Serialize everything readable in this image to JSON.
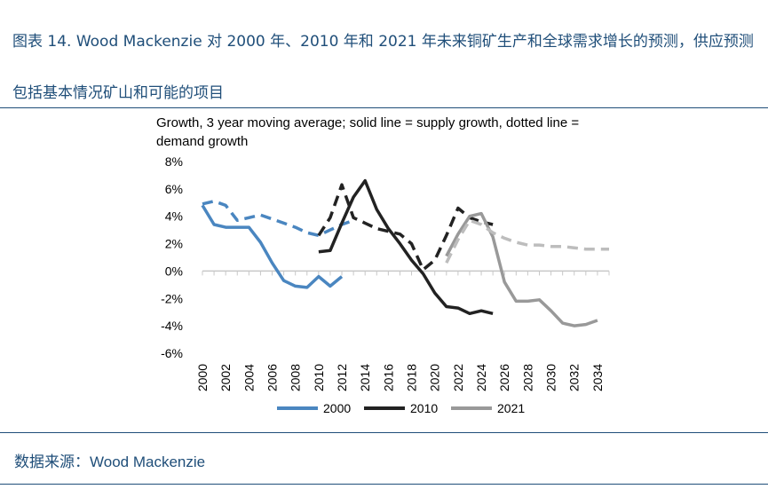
{
  "caption": "图表 14. Wood Mackenzie 对 2000 年、2010 年和 2021 年未来铜矿生产和全球需求增长的预测，供应预测包括基本情况矿山和可能的项目",
  "source": {
    "prefix": "数据来源：",
    "name": "Wood Mackenzie"
  },
  "chart_data": {
    "type": "line",
    "title": "",
    "subtitle": "Growth, 3 year moving average; solid line = supply growth, dotted line = demand growth",
    "subtitle_lines": [
      "Growth, 3 year moving average; solid line = supply growth, dotted line =",
      "demand growth"
    ],
    "xlabel": "",
    "ylabel": "",
    "x_ticks": [
      "2000",
      "2002",
      "2004",
      "2006",
      "2008",
      "2010",
      "2012",
      "2014",
      "2016",
      "2018",
      "2020",
      "2022",
      "2024",
      "2026",
      "2028",
      "2030",
      "2032",
      "2034"
    ],
    "y_ticks": [
      "8%",
      "6%",
      "4%",
      "2%",
      "0%",
      "-2%",
      "-4%",
      "-6%"
    ],
    "xlim": [
      2000,
      2035
    ],
    "ylim": [
      -6,
      8
    ],
    "legend_position": "bottom",
    "series": [
      {
        "name": "2000",
        "kind": "supply",
        "color": "#4a86c0",
        "points": [
          [
            2000,
            4.8
          ],
          [
            2001,
            3.4
          ],
          [
            2002,
            3.2
          ],
          [
            2003,
            3.2
          ],
          [
            2004,
            3.2
          ],
          [
            2005,
            2.1
          ],
          [
            2006,
            0.6
          ],
          [
            2007,
            -0.7
          ],
          [
            2008,
            -1.1
          ],
          [
            2009,
            -1.2
          ],
          [
            2010,
            -0.4
          ],
          [
            2011,
            -1.1
          ],
          [
            2012,
            -0.4
          ]
        ]
      },
      {
        "name": "2000",
        "kind": "demand",
        "color": "#4a86c0",
        "points": [
          [
            2000,
            4.9
          ],
          [
            2001,
            5.1
          ],
          [
            2002,
            4.8
          ],
          [
            2003,
            3.7
          ],
          [
            2004,
            3.9
          ],
          [
            2005,
            4.1
          ],
          [
            2006,
            3.8
          ],
          [
            2007,
            3.5
          ],
          [
            2008,
            3.2
          ],
          [
            2009,
            2.8
          ],
          [
            2010,
            2.6
          ],
          [
            2011,
            3.0
          ],
          [
            2012,
            3.4
          ],
          [
            2013,
            3.7
          ]
        ]
      },
      {
        "name": "2010",
        "kind": "supply",
        "color": "#222222",
        "points": [
          [
            2010,
            1.4
          ],
          [
            2011,
            1.5
          ],
          [
            2012,
            3.5
          ],
          [
            2013,
            5.4
          ],
          [
            2014,
            6.6
          ],
          [
            2015,
            4.5
          ],
          [
            2016,
            3.1
          ],
          [
            2017,
            2.0
          ],
          [
            2018,
            0.8
          ],
          [
            2019,
            -0.2
          ],
          [
            2020,
            -1.6
          ],
          [
            2021,
            -2.6
          ],
          [
            2022,
            -2.7
          ],
          [
            2023,
            -3.1
          ],
          [
            2024,
            -2.9
          ],
          [
            2025,
            -3.1
          ]
        ]
      },
      {
        "name": "2010",
        "kind": "demand",
        "color": "#222222",
        "points": [
          [
            2010,
            2.6
          ],
          [
            2011,
            3.9
          ],
          [
            2012,
            6.3
          ],
          [
            2013,
            3.9
          ],
          [
            2014,
            3.5
          ],
          [
            2015,
            3.1
          ],
          [
            2016,
            2.9
          ],
          [
            2017,
            2.7
          ],
          [
            2018,
            2.0
          ],
          [
            2019,
            0.1
          ],
          [
            2020,
            0.8
          ],
          [
            2021,
            2.6
          ],
          [
            2022,
            4.6
          ],
          [
            2023,
            3.9
          ],
          [
            2024,
            3.6
          ],
          [
            2025,
            3.4
          ]
        ]
      },
      {
        "name": "2021",
        "kind": "supply",
        "color": "#999999",
        "points": [
          [
            2021,
            1.1
          ],
          [
            2022,
            2.7
          ],
          [
            2023,
            4.0
          ],
          [
            2024,
            4.2
          ],
          [
            2025,
            2.5
          ],
          [
            2026,
            -0.8
          ],
          [
            2027,
            -2.2
          ],
          [
            2028,
            -2.2
          ],
          [
            2029,
            -2.1
          ],
          [
            2030,
            -2.9
          ],
          [
            2031,
            -3.8
          ],
          [
            2032,
            -4.0
          ],
          [
            2033,
            -3.9
          ],
          [
            2034,
            -3.6
          ]
        ]
      },
      {
        "name": "2021",
        "kind": "demand",
        "color": "#bdbdbd",
        "points": [
          [
            2021,
            0.6
          ],
          [
            2022,
            2.3
          ],
          [
            2023,
            3.7
          ],
          [
            2024,
            3.4
          ],
          [
            2025,
            2.8
          ],
          [
            2026,
            2.4
          ],
          [
            2027,
            2.1
          ],
          [
            2028,
            1.9
          ],
          [
            2029,
            1.9
          ],
          [
            2030,
            1.8
          ],
          [
            2031,
            1.8
          ],
          [
            2032,
            1.7
          ],
          [
            2033,
            1.6
          ],
          [
            2034,
            1.6
          ],
          [
            2035,
            1.6
          ]
        ]
      }
    ],
    "legend": [
      {
        "name": "2000",
        "color": "#4a86c0"
      },
      {
        "name": "2010",
        "color": "#222222"
      },
      {
        "name": "2021",
        "color": "#999999"
      }
    ]
  }
}
